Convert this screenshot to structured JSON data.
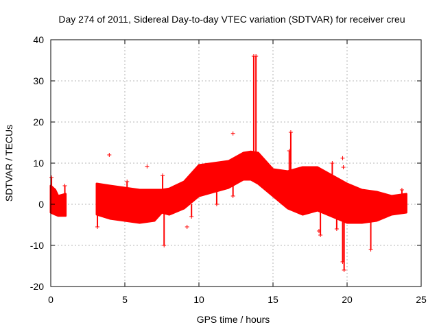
{
  "chart_data": {
    "type": "scatter",
    "title": "Day 274 of 2011, Sidereal Day-to-day VTEC variation (SDTVAR) for receiver creu",
    "xlabel": "GPS time / hours",
    "ylabel": "SDTVAR / TECUs",
    "xlim": [
      0,
      25
    ],
    "ylim": [
      -20,
      40
    ],
    "x_ticks": [
      "0",
      "5",
      "10",
      "15",
      "20",
      "25"
    ],
    "y_ticks": [
      "-20",
      "-10",
      "0",
      "10",
      "20",
      "30",
      "40"
    ],
    "grid": true,
    "marker": "+",
    "series_color": "#ff0000",
    "band": {
      "name": "SDTVAR",
      "segments": [
        {
          "x": [
            0.0,
            0.3,
            0.5,
            1.0
          ],
          "upper": [
            4.5,
            3.5,
            2.0,
            2.5
          ],
          "lower": [
            -2.0,
            -2.5,
            -2.8,
            -2.8
          ]
        },
        {
          "x": [
            3.1,
            4.0,
            5.0,
            6.0,
            7.0,
            7.5,
            8.0,
            9.0,
            10.0,
            11.0,
            12.0,
            12.5,
            13.0,
            13.5,
            14.0,
            15.0,
            16.0,
            17.0,
            18.0,
            19.0,
            20.0,
            21.0,
            22.0,
            23.0,
            24.0
          ],
          "upper": [
            5.0,
            4.5,
            4.0,
            3.5,
            3.5,
            3.5,
            3.8,
            5.5,
            9.5,
            10.0,
            10.5,
            11.5,
            12.5,
            12.8,
            12.5,
            8.5,
            8.0,
            9.0,
            9.0,
            7.0,
            5.0,
            3.5,
            3.0,
            2.0,
            2.5
          ],
          "lower": [
            -2.5,
            -3.5,
            -4.0,
            -4.5,
            -4.0,
            -2.0,
            -2.5,
            -1.0,
            2.0,
            3.0,
            4.0,
            5.0,
            6.0,
            6.0,
            5.0,
            2.0,
            -1.0,
            -2.5,
            -1.5,
            -3.0,
            -4.5,
            -4.5,
            -4.0,
            -2.5,
            -2.0
          ]
        }
      ]
    },
    "spikes": [
      {
        "x": 0.05,
        "y_from": 0,
        "y_to": 6.5
      },
      {
        "x": 0.95,
        "y_from": 0,
        "y_to": 4.5
      },
      {
        "x": 3.15,
        "y_from": 0,
        "y_to": -5.5
      },
      {
        "x": 5.15,
        "y_from": 2,
        "y_to": 5.5
      },
      {
        "x": 7.55,
        "y_from": 0,
        "y_to": 7.0
      },
      {
        "x": 7.65,
        "y_from": -2,
        "y_to": -10.0
      },
      {
        "x": 9.5,
        "y_from": 0,
        "y_to": -3.0
      },
      {
        "x": 11.2,
        "y_from": 4,
        "y_to": 0.0
      },
      {
        "x": 12.3,
        "y_from": 5,
        "y_to": 2.0
      },
      {
        "x": 13.7,
        "y_from": 12,
        "y_to": 36.0
      },
      {
        "x": 13.85,
        "y_from": 12,
        "y_to": 36.0
      },
      {
        "x": 16.2,
        "y_from": 8,
        "y_to": 17.5
      },
      {
        "x": 16.1,
        "y_from": 5,
        "y_to": 13.0
      },
      {
        "x": 18.2,
        "y_from": -1,
        "y_to": -7.5
      },
      {
        "x": 19.0,
        "y_from": 5,
        "y_to": 10.0
      },
      {
        "x": 19.3,
        "y_from": -1,
        "y_to": -6.0
      },
      {
        "x": 19.8,
        "y_from": -2,
        "y_to": -16.0
      },
      {
        "x": 19.7,
        "y_from": -2,
        "y_to": -14.0
      },
      {
        "x": 21.6,
        "y_from": -2,
        "y_to": -11.0
      },
      {
        "x": 23.7,
        "y_from": 2,
        "y_to": 3.5
      }
    ],
    "outliers": [
      {
        "x": 3.95,
        "y": 12.0
      },
      {
        "x": 6.5,
        "y": 9.2
      },
      {
        "x": 9.2,
        "y": -5.5
      },
      {
        "x": 12.3,
        "y": 17.2
      },
      {
        "x": 19.7,
        "y": 11.2
      },
      {
        "x": 19.75,
        "y": 9.0
      },
      {
        "x": 18.1,
        "y": -6.5
      }
    ]
  }
}
